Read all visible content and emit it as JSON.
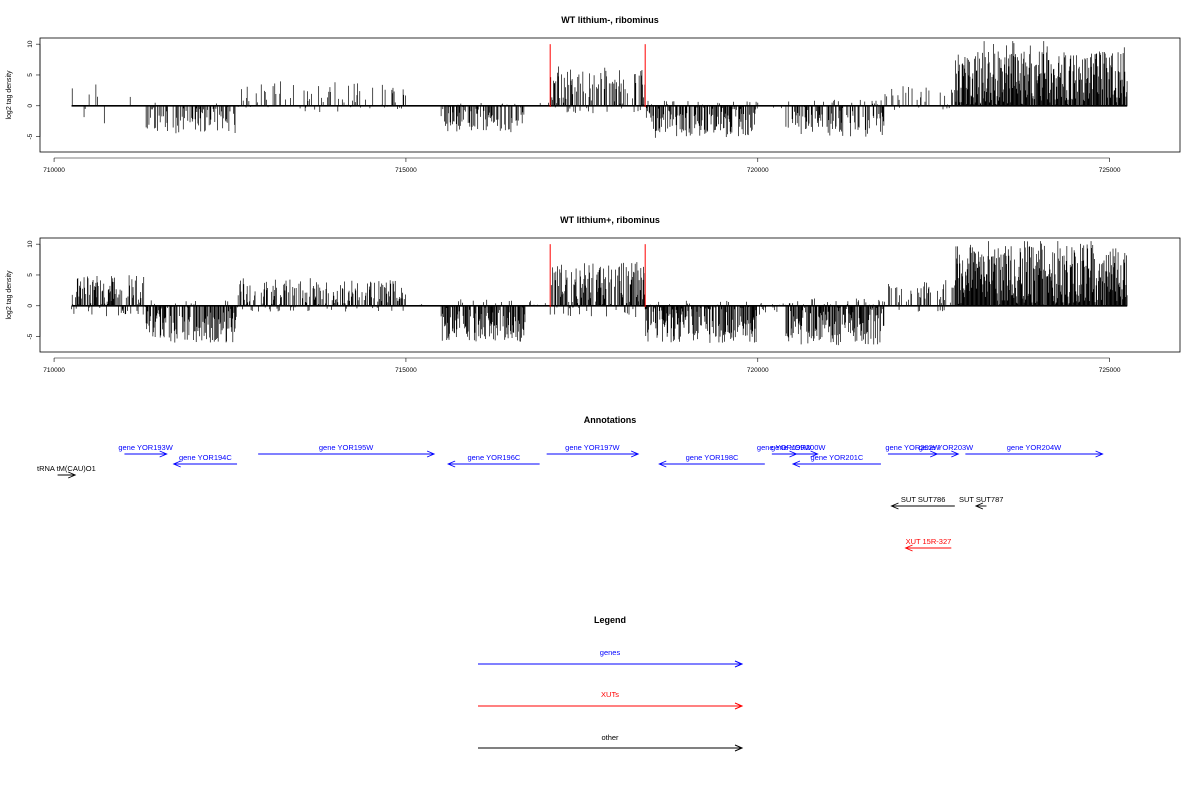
{
  "chart_data": [
    {
      "type": "bar",
      "title": "WT lithium-, ribominus",
      "xlabel": "",
      "ylabel": "log2 tag density",
      "xlim": [
        709800,
        726000
      ],
      "ylim": [
        -7.5,
        11
      ],
      "xticks": [
        710000,
        715000,
        720000,
        725000
      ],
      "xtick_labels": [
        "710000",
        "715000",
        "720000",
        "725000"
      ],
      "yticks": [
        10,
        5,
        0,
        -5
      ],
      "ytick_labels": [
        "10",
        "5",
        "0",
        "-5"
      ],
      "data_range": [
        710250,
        725250
      ],
      "markers": [
        717050,
        718400
      ],
      "marker_color": "#ff0000",
      "segments": [
        {
          "from": 710250,
          "to": 711300,
          "mean": 0.3,
          "amp": 3.5,
          "density": 0.05
        },
        {
          "from": 711300,
          "to": 712600,
          "mean": -2.0,
          "amp": 2.5,
          "density": 0.5
        },
        {
          "from": 712600,
          "to": 715000,
          "mean": 1.4,
          "amp": 2.6,
          "density": 0.3
        },
        {
          "from": 715000,
          "to": 715500,
          "mean": 0.1,
          "amp": 0.2,
          "density": 0.02
        },
        {
          "from": 715500,
          "to": 716700,
          "mean": -2.0,
          "amp": 2.5,
          "density": 0.55
        },
        {
          "from": 716700,
          "to": 717050,
          "mean": 0.3,
          "amp": 0.5,
          "density": 0.05
        },
        {
          "from": 717050,
          "to": 718400,
          "mean": 2.3,
          "amp": 3.5,
          "density": 0.5
        },
        {
          "from": 718400,
          "to": 720000,
          "mean": -2.2,
          "amp": 3.0,
          "density": 0.7
        },
        {
          "from": 720000,
          "to": 720400,
          "mean": -0.3,
          "amp": 1.0,
          "density": 0.1
        },
        {
          "from": 720400,
          "to": 721800,
          "mean": -2.0,
          "amp": 3.0,
          "density": 0.6
        },
        {
          "from": 721800,
          "to": 722800,
          "mean": 1.2,
          "amp": 2.0,
          "density": 0.2
        },
        {
          "from": 722800,
          "to": 725250,
          "mean": 4.4,
          "amp": 4.5,
          "density": 0.95
        }
      ]
    },
    {
      "type": "bar",
      "title": "WT lithium+, ribominus",
      "xlabel": "",
      "ylabel": "log2 tag density",
      "xlim": [
        709800,
        726000
      ],
      "ylim": [
        -7.5,
        11
      ],
      "xticks": [
        710000,
        715000,
        720000,
        725000
      ],
      "xtick_labels": [
        "710000",
        "715000",
        "720000",
        "725000"
      ],
      "yticks": [
        10,
        5,
        0,
        -5
      ],
      "ytick_labels": [
        "10",
        "5",
        "0",
        "-5"
      ],
      "data_range": [
        710250,
        725250
      ],
      "markers": [
        717050,
        718400
      ],
      "marker_color": "#ff0000",
      "segments": [
        {
          "from": 710250,
          "to": 711300,
          "mean": 1.5,
          "amp": 3.5,
          "density": 0.7
        },
        {
          "from": 711300,
          "to": 712600,
          "mean": -2.5,
          "amp": 3.5,
          "density": 0.75
        },
        {
          "from": 712600,
          "to": 715000,
          "mean": 1.6,
          "amp": 2.6,
          "density": 0.6
        },
        {
          "from": 715000,
          "to": 715500,
          "mean": 0.2,
          "amp": 0.3,
          "density": 0.05
        },
        {
          "from": 715500,
          "to": 716700,
          "mean": -2.4,
          "amp": 3.5,
          "density": 0.8
        },
        {
          "from": 716700,
          "to": 717050,
          "mean": 0.4,
          "amp": 0.5,
          "density": 0.1
        },
        {
          "from": 717050,
          "to": 718400,
          "mean": 2.6,
          "amp": 4.5,
          "density": 0.8
        },
        {
          "from": 718400,
          "to": 720000,
          "mean": -2.6,
          "amp": 3.5,
          "density": 0.85
        },
        {
          "from": 720000,
          "to": 720400,
          "mean": -0.5,
          "amp": 1.0,
          "density": 0.2
        },
        {
          "from": 720400,
          "to": 721800,
          "mean": -2.6,
          "amp": 3.8,
          "density": 0.85
        },
        {
          "from": 721800,
          "to": 722800,
          "mean": 1.5,
          "amp": 2.5,
          "density": 0.4
        },
        {
          "from": 722800,
          "to": 725250,
          "mean": 5.0,
          "amp": 5.0,
          "density": 0.95
        }
      ]
    }
  ],
  "annotations": {
    "title": "Annotations",
    "genes_color": "#0000ff",
    "xuts_color": "#ff0000",
    "other_color": "#000000",
    "features": [
      {
        "label": "gene YOR193W",
        "start": 711000,
        "end": 711600,
        "strand": "+",
        "row": 0,
        "kind": "genes"
      },
      {
        "label": "gene YOR194C",
        "start": 711700,
        "end": 712600,
        "strand": "-",
        "row": 1,
        "kind": "genes"
      },
      {
        "label": "gene YOR195W",
        "start": 712900,
        "end": 715400,
        "strand": "+",
        "row": 0,
        "kind": "genes"
      },
      {
        "label": "gene YOR196C",
        "start": 715600,
        "end": 716900,
        "strand": "-",
        "row": 1,
        "kind": "genes"
      },
      {
        "label": "gene YOR197W",
        "start": 717000,
        "end": 718300,
        "strand": "+",
        "row": 0,
        "kind": "genes"
      },
      {
        "label": "gene YOR198C",
        "start": 718600,
        "end": 720100,
        "strand": "-",
        "row": 1,
        "kind": "genes"
      },
      {
        "label": "gene YOR199W",
        "start": 720200,
        "end": 720550,
        "strand": "+",
        "row": 0,
        "kind": "genes"
      },
      {
        "label": "gene YOR200W",
        "start": 720300,
        "end": 720850,
        "strand": "+",
        "row": 0,
        "kind": "genes"
      },
      {
        "label": "gene YOR201C",
        "start": 720500,
        "end": 721750,
        "strand": "-",
        "row": 1,
        "kind": "genes"
      },
      {
        "label": "gene YOR202W",
        "start": 721850,
        "end": 722550,
        "strand": "+",
        "row": 0,
        "kind": "genes"
      },
      {
        "label": "gene YOR203W",
        "start": 722500,
        "end": 722850,
        "strand": "+",
        "row": 0,
        "kind": "genes"
      },
      {
        "label": "gene YOR204W",
        "start": 722950,
        "end": 724900,
        "strand": "+",
        "row": 0,
        "kind": "genes"
      },
      {
        "label": "tRNA tM(CAU)O1",
        "start": 710050,
        "end": 710300,
        "strand": "+",
        "row": 2,
        "kind": "other"
      },
      {
        "label": "SUT SUT786",
        "start": 721900,
        "end": 722800,
        "strand": "-",
        "row": 3,
        "kind": "other"
      },
      {
        "label": "SUT SUT787",
        "start": 723100,
        "end": 723250,
        "strand": "-",
        "row": 3,
        "kind": "other"
      },
      {
        "label": "XUT 15R-327",
        "start": 722100,
        "end": 722750,
        "strand": "-",
        "row": 4,
        "kind": "xuts"
      }
    ]
  },
  "legend": {
    "title": "Legend",
    "items": [
      {
        "label": "genes",
        "color": "#0000ff"
      },
      {
        "label": "XUTs",
        "color": "#ff0000"
      },
      {
        "label": "other",
        "color": "#000000"
      }
    ]
  }
}
